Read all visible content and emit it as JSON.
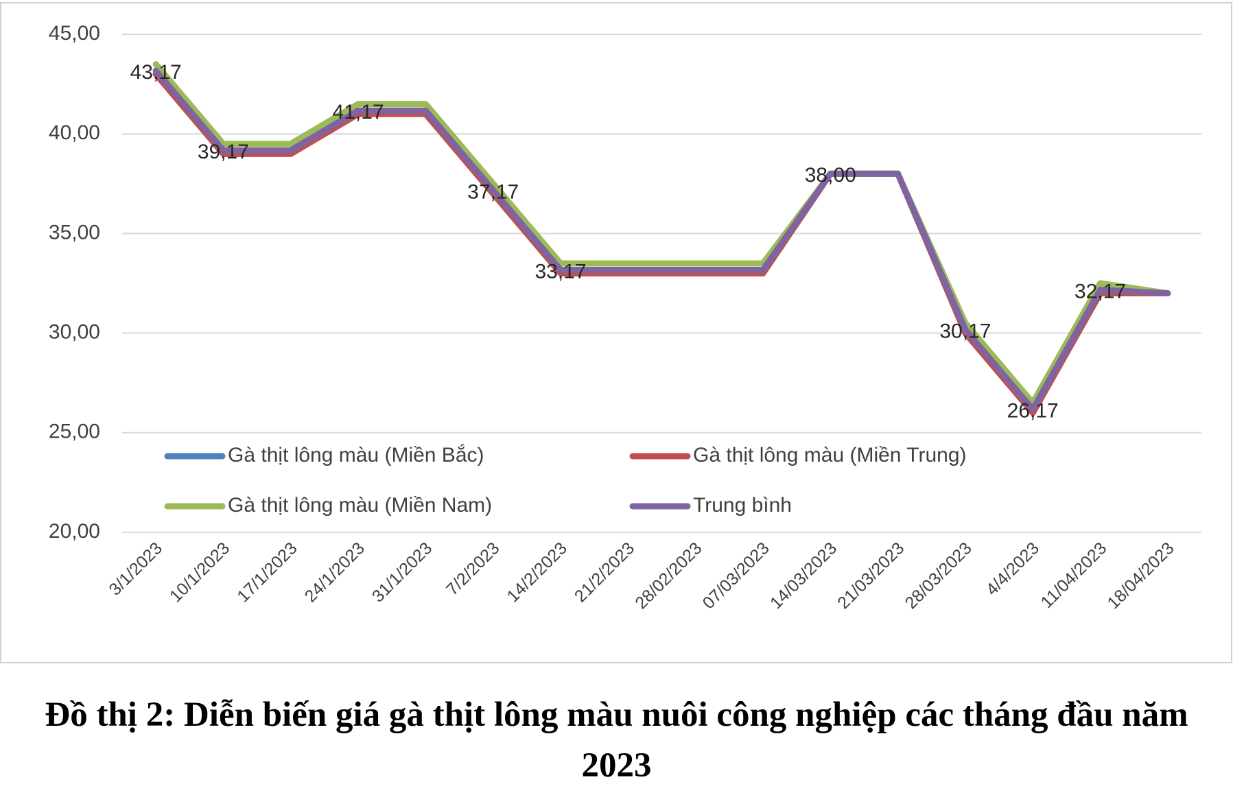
{
  "chart_data": {
    "type": "line",
    "title": "Đồ thị 2: Diễn biến giá gà thịt lông màu nuôi công nghiệp các tháng đầu năm 2023",
    "categories": [
      "3/1/2023",
      "10/1/2023",
      "17/1/2023",
      "24/1/2023",
      "31/1/2023",
      "7/2/2023",
      "14/2/2023",
      "21/2/2023",
      "28/02/2023",
      "07/03/2023",
      "14/03/2023",
      "21/03/2023",
      "28/03/2023",
      "4/4/2023",
      "11/04/2023",
      "18/04/2023"
    ],
    "series": [
      {
        "name": "Gà thịt lông màu (Miền Bắc)",
        "color": "#4f81bd",
        "values": [
          43,
          39,
          39,
          41,
          41,
          37,
          33,
          33,
          33,
          33,
          38,
          38,
          30,
          26,
          32,
          32
        ]
      },
      {
        "name": "Gà thịt lông màu (Miền Trung)",
        "color": "#c0504d",
        "values": [
          43,
          39,
          39,
          41,
          41,
          37,
          33,
          33,
          33,
          33,
          38,
          38,
          30,
          26,
          32,
          32
        ]
      },
      {
        "name": "Gà thịt lông màu (Miền Nam)",
        "color": "#9bbb59",
        "values": [
          43.5,
          39.5,
          39.5,
          41.5,
          41.5,
          37.5,
          33.5,
          33.5,
          33.5,
          33.5,
          38,
          38,
          30.5,
          26.5,
          32.5,
          32
        ]
      },
      {
        "name": "Trung bình",
        "color": "#8064a2",
        "values": [
          43.17,
          39.17,
          39.17,
          41.17,
          41.17,
          37.17,
          33.17,
          33.17,
          33.17,
          33.17,
          38,
          38,
          30.17,
          26.17,
          32.17,
          32
        ],
        "value_labels": [
          "43,17",
          "39,17",
          null,
          "41,17",
          null,
          "37,17",
          "33,17",
          null,
          null,
          null,
          "38,00",
          null,
          "30,17",
          "26,17",
          "32,17",
          null
        ]
      }
    ],
    "ylim": [
      20,
      45
    ],
    "yticks": [
      {
        "value": 20,
        "label": "20,00"
      },
      {
        "value": 25,
        "label": "25,00"
      },
      {
        "value": 30,
        "label": "30,00"
      },
      {
        "value": 35,
        "label": "35,00"
      },
      {
        "value": 40,
        "label": "40,00"
      },
      {
        "value": 45,
        "label": "45,00"
      }
    ],
    "grid": true
  }
}
